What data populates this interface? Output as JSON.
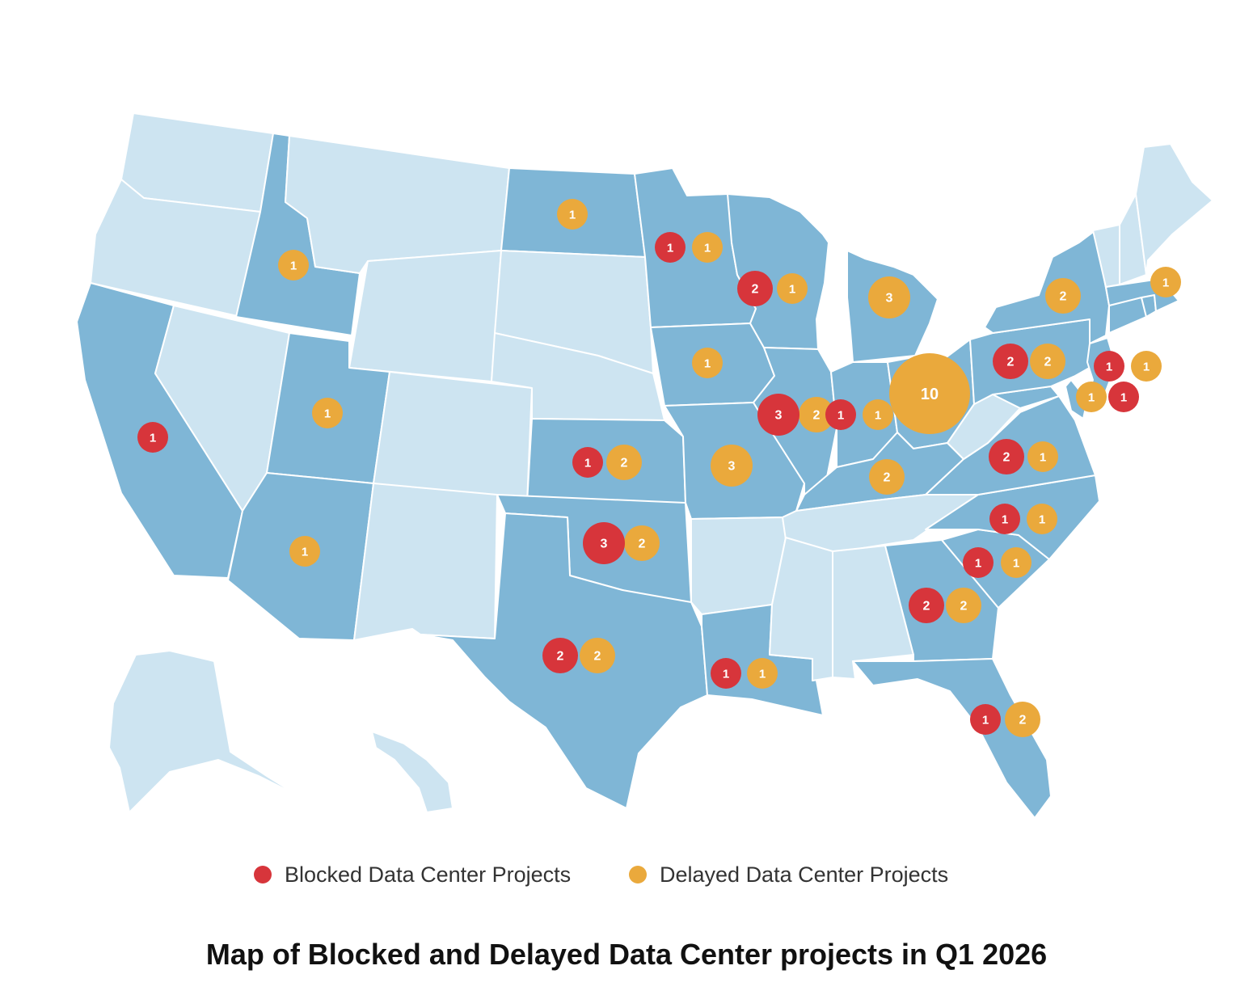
{
  "colors": {
    "highlighted_state": "#7fb6d6",
    "other_state": "#cde4f1",
    "state_border": "#ffffff",
    "blocked": "#d7353b",
    "delayed": "#eaa93c",
    "title_text": "#111111"
  },
  "title": "Map of Blocked and Delayed Data Center projects in Q1 2026",
  "legend": {
    "blocked_label": "Blocked Data Center Projects",
    "delayed_label": "Delayed Data Center Projects"
  },
  "highlighted_states": [
    "ID",
    "UT",
    "AZ",
    "CA",
    "ND",
    "MN",
    "WI",
    "IA",
    "MI",
    "IL",
    "IN",
    "OH",
    "KY",
    "MO",
    "KS",
    "OK",
    "TX",
    "LA",
    "GA",
    "FL",
    "SC",
    "NC",
    "VA",
    "MD",
    "PA",
    "NY",
    "NJ",
    "DE",
    "MA",
    "CT",
    "RI"
  ],
  "other_states": [
    "WA",
    "OR",
    "MT",
    "WY",
    "NV",
    "CO",
    "NM",
    "SD",
    "NE",
    "AR",
    "MS",
    "AL",
    "TN",
    "WV",
    "VT",
    "NH",
    "ME",
    "AK",
    "HI"
  ],
  "projects": [
    {
      "state": "ND",
      "blocked": null,
      "delayed": 1
    },
    {
      "state": "MN",
      "blocked": 1,
      "delayed": 1
    },
    {
      "state": "ID",
      "blocked": null,
      "delayed": 1
    },
    {
      "state": "WI",
      "blocked": 2,
      "delayed": 1
    },
    {
      "state": "MI",
      "blocked": null,
      "delayed": 3
    },
    {
      "state": "NY",
      "blocked": null,
      "delayed": 2
    },
    {
      "state": "MA",
      "blocked": null,
      "delayed": 1
    },
    {
      "state": "IA",
      "blocked": null,
      "delayed": 1
    },
    {
      "state": "PA",
      "blocked": 2,
      "delayed": 2
    },
    {
      "state": "NJ",
      "blocked": 1,
      "delayed": 1
    },
    {
      "state": "DE/MD",
      "blocked": 1,
      "delayed": 1
    },
    {
      "state": "CA",
      "blocked": 1,
      "delayed": null
    },
    {
      "state": "UT",
      "blocked": null,
      "delayed": 1
    },
    {
      "state": "IL",
      "blocked": 3,
      "delayed": 2
    },
    {
      "state": "IN",
      "blocked": 1,
      "delayed": 1
    },
    {
      "state": "OH",
      "blocked": null,
      "delayed": 10
    },
    {
      "state": "KS",
      "blocked": 1,
      "delayed": 2
    },
    {
      "state": "MO",
      "blocked": null,
      "delayed": 3
    },
    {
      "state": "KY",
      "blocked": null,
      "delayed": 2
    },
    {
      "state": "VA",
      "blocked": 2,
      "delayed": 1
    },
    {
      "state": "NC",
      "blocked": 1,
      "delayed": 1
    },
    {
      "state": "OK",
      "blocked": 3,
      "delayed": 2
    },
    {
      "state": "AZ",
      "blocked": null,
      "delayed": 1
    },
    {
      "state": "SC",
      "blocked": 1,
      "delayed": 1
    },
    {
      "state": "GA",
      "blocked": 2,
      "delayed": 2
    },
    {
      "state": "TX",
      "blocked": 2,
      "delayed": 2
    },
    {
      "state": "LA",
      "blocked": 1,
      "delayed": 1
    },
    {
      "state": "FL",
      "blocked": 1,
      "delayed": 2
    }
  ]
}
